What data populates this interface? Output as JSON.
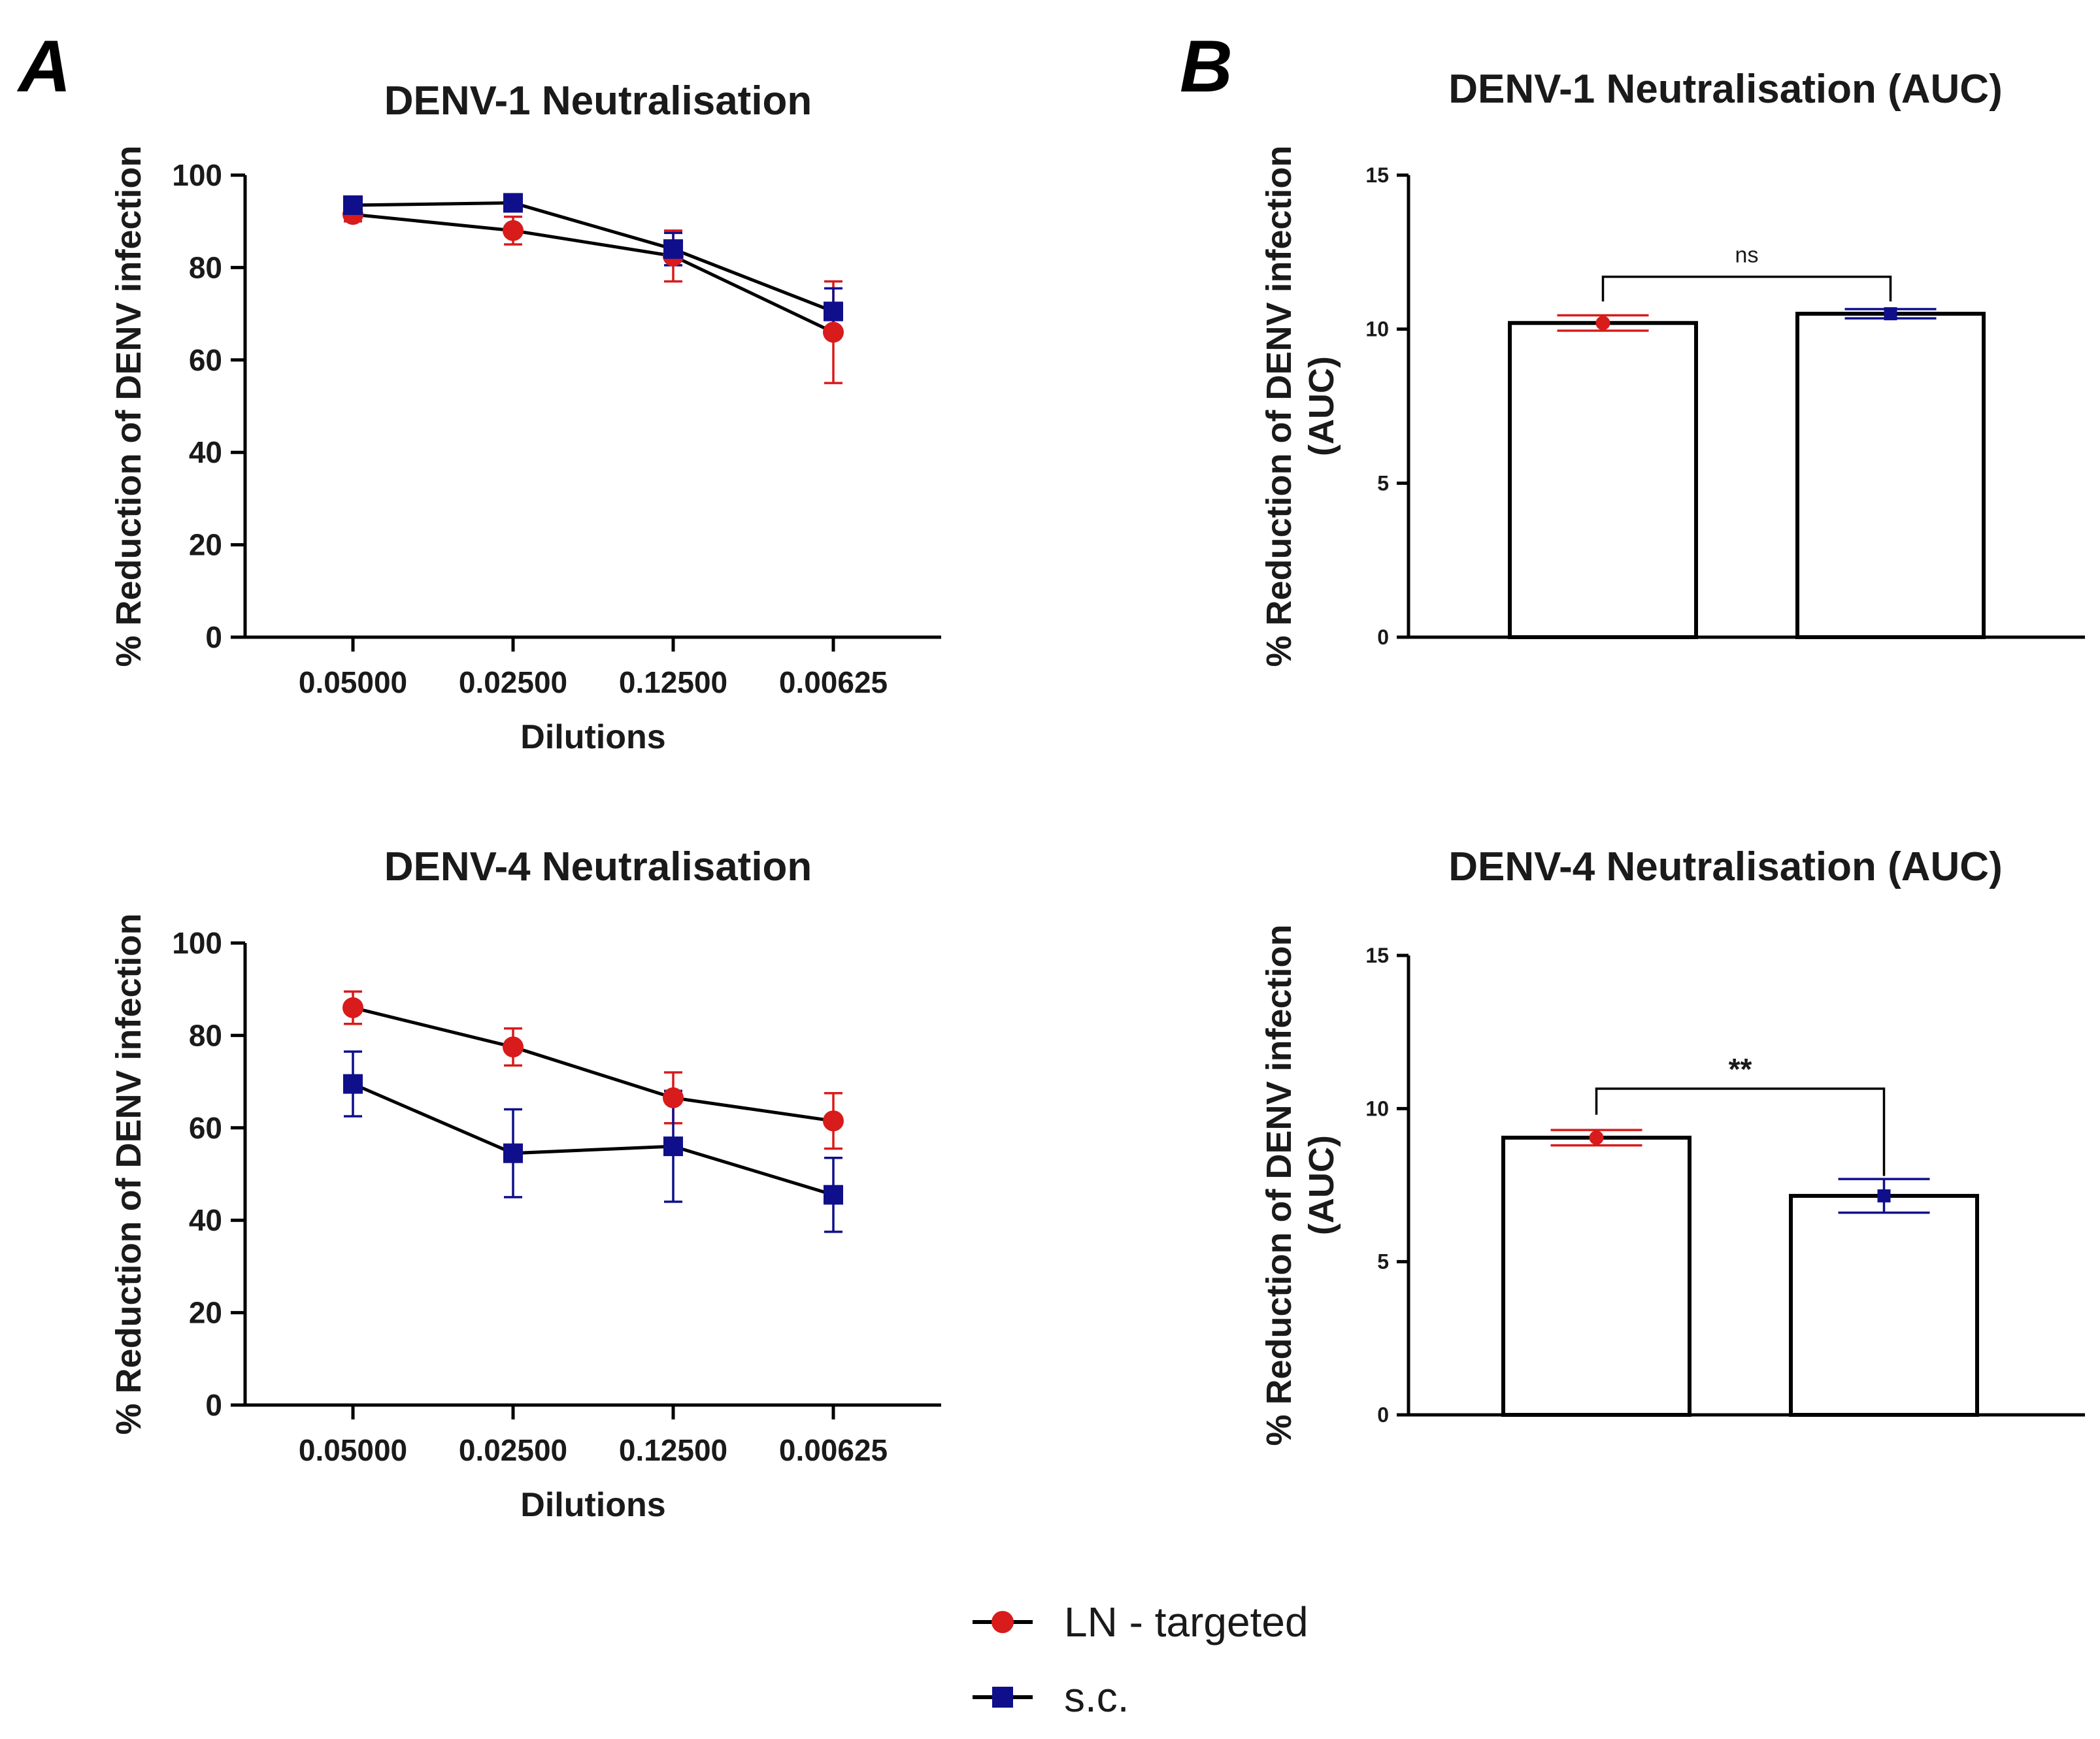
{
  "panels": {
    "a": "A",
    "b": "B"
  },
  "colors": {
    "ln": "#d81b1b",
    "sc": "#0f0f8c",
    "line": "#000000"
  },
  "legend": {
    "ln": "LN - targeted",
    "sc": "s.c."
  },
  "chart_data": [
    {
      "id": "line1",
      "type": "line",
      "title": "DENV-1 Neutralisation",
      "xlabel": "Dilutions",
      "ylabel": "% Reduction of DENV infection",
      "categories": [
        "0.05000",
        "0.02500",
        "0.12500",
        "0.00625"
      ],
      "ylim": [
        0,
        100
      ],
      "yticks": [
        "0",
        "20",
        "40",
        "60",
        "80",
        "100"
      ],
      "series": [
        {
          "name": "LN - targeted",
          "values": [
            91.5,
            88,
            82.5,
            66
          ],
          "err": [
            1.5,
            3,
            5.5,
            11
          ]
        },
        {
          "name": "s.c.",
          "values": [
            93.5,
            94,
            84,
            70.5
          ],
          "err": [
            1,
            1,
            3.5,
            5
          ]
        }
      ]
    },
    {
      "id": "line4",
      "type": "line",
      "title": "DENV-4 Neutralisation",
      "xlabel": "Dilutions",
      "ylabel": "% Reduction of DENV infection",
      "categories": [
        "0.05000",
        "0.02500",
        "0.12500",
        "0.00625"
      ],
      "ylim": [
        0,
        100
      ],
      "yticks": [
        "0",
        "20",
        "40",
        "60",
        "80",
        "100"
      ],
      "series": [
        {
          "name": "LN - targeted",
          "values": [
            86,
            77.5,
            66.5,
            61.5
          ],
          "err": [
            3.5,
            4,
            5.5,
            6
          ]
        },
        {
          "name": "s.c.",
          "values": [
            69.5,
            54.5,
            56,
            45.5
          ],
          "err": [
            7,
            9.5,
            12,
            8
          ]
        }
      ]
    },
    {
      "id": "bar1",
      "type": "bar",
      "title": "DENV-1 Neutralisation (AUC)",
      "ylabel_lines": [
        "% Reduction of DENV infection",
        "(AUC)"
      ],
      "ylim": [
        0,
        15
      ],
      "yticks": [
        "0",
        "5",
        "10",
        "15"
      ],
      "series": [
        {
          "name": "LN - targeted",
          "value": 10.2,
          "err": 0.25
        },
        {
          "name": "s.c.",
          "value": 10.5,
          "err": 0.15
        }
      ],
      "significance": "ns"
    },
    {
      "id": "bar4",
      "type": "bar",
      "title": "DENV-4 Neutralisation (AUC)",
      "ylabel_lines": [
        "% Reduction of DENV infection",
        "(AUC)"
      ],
      "ylim": [
        0,
        15
      ],
      "yticks": [
        "0",
        "5",
        "10",
        "15"
      ],
      "series": [
        {
          "name": "LN - targeted",
          "value": 9.05,
          "err": 0.25
        },
        {
          "name": "s.c.",
          "value": 7.15,
          "err": 0.55
        }
      ],
      "significance": "**"
    }
  ]
}
